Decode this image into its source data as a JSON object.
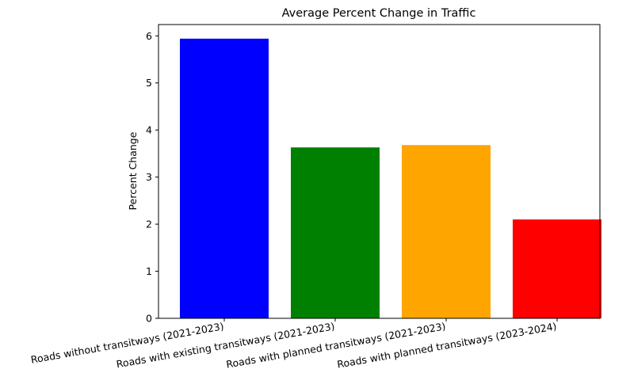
{
  "chart_data": {
    "type": "bar",
    "title": "Average Percent Change in Traffic",
    "xlabel": "",
    "ylabel": "Percent Change",
    "categories": [
      "Roads without transitways (2021-2023)",
      "Roads with existing transitways (2021-2023)",
      "Roads with planned transitways (2021-2023)",
      "Roads with planned transitways (2023-2024)"
    ],
    "values": [
      5.94,
      3.63,
      3.68,
      2.1
    ],
    "colors": [
      "#0000ff",
      "#008000",
      "#ffa500",
      "#ff0000"
    ],
    "ylim": [
      0,
      6.24
    ],
    "yticks": [
      0,
      1,
      2,
      3,
      4,
      5,
      6
    ],
    "grid": false,
    "legend": "none"
  }
}
